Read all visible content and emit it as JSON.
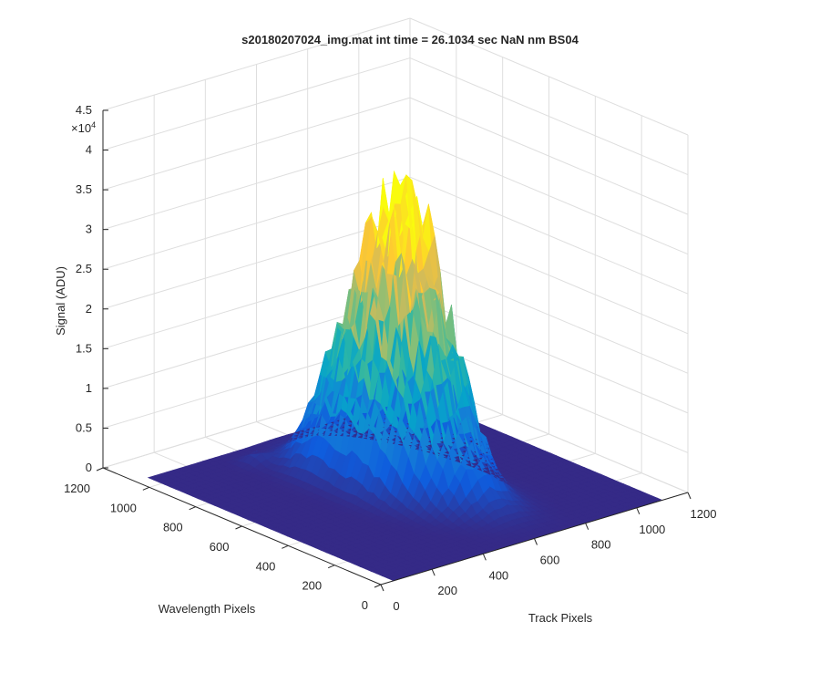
{
  "chart_data": {
    "type": "surface",
    "title": "s20180207024_img.mat int time = 26.1034 sec  NaN nm BS04",
    "xlabel": "Track Pixels",
    "ylabel": "Wavelength Pixels",
    "zlabel": "Signal (ADU)",
    "x_ticks": [
      "0",
      "200",
      "400",
      "600",
      "800",
      "1000",
      "1200"
    ],
    "y_ticks": [
      "0",
      "200",
      "400",
      "600",
      "800",
      "1000",
      "1200"
    ],
    "z_ticks": [
      "0",
      "0.5",
      "1",
      "1.5",
      "2",
      "2.5",
      "3",
      "3.5",
      "4",
      "4.5"
    ],
    "z_exponent_base": "×10",
    "z_exponent_power": "4",
    "xlim": [
      0,
      1200
    ],
    "ylim": [
      0,
      1200
    ],
    "zlim": [
      0,
      45000
    ],
    "grid": true,
    "colormap": "parula",
    "colormap_stops": [
      "#352a87",
      "#0f5cdd",
      "#1481d6",
      "#06a4ca",
      "#2eb7a4",
      "#87bf77",
      "#d1bb59",
      "#fec832",
      "#f9fb0e"
    ],
    "surface_extent": {
      "x": [
        50,
        1100
      ],
      "y": [
        0,
        1060
      ]
    },
    "peaks": [
      {
        "x": 580,
        "y": 600,
        "z": 31000,
        "sx": 75,
        "sy": 140
      },
      {
        "x": 640,
        "y": 450,
        "z": 14000,
        "sx": 70,
        "sy": 130
      },
      {
        "x": 500,
        "y": 780,
        "z": 6000,
        "sx": 60,
        "sy": 80
      },
      {
        "x": 380,
        "y": 950,
        "z": 1200,
        "sx": 30,
        "sy": 30
      }
    ]
  }
}
